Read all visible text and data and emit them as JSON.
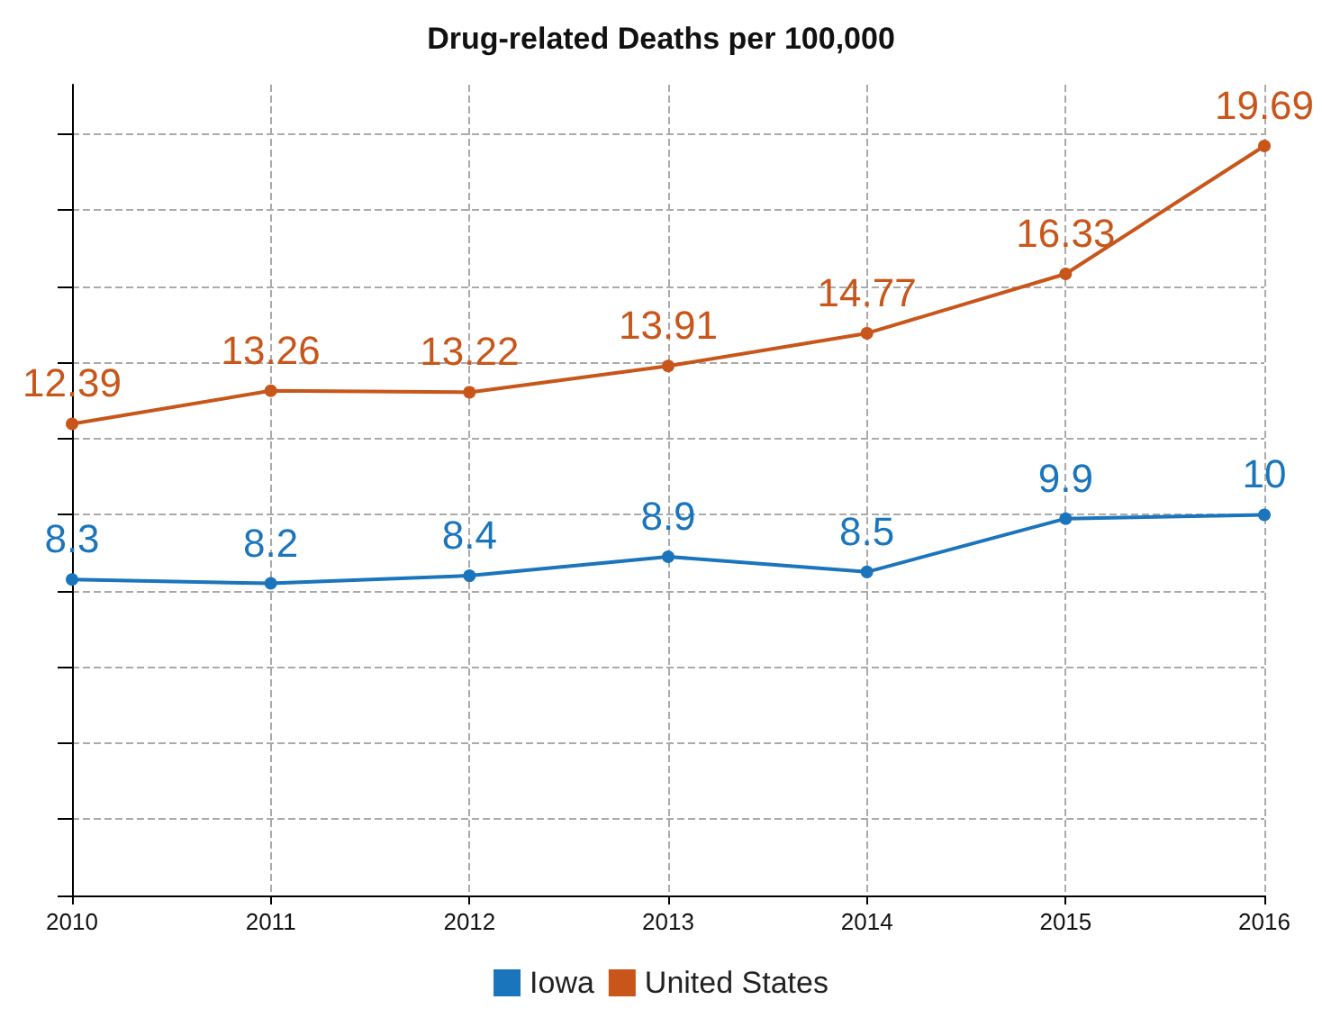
{
  "chart_data": {
    "type": "line",
    "title": "Drug-related Deaths per 100,000",
    "categories": [
      "2010",
      "2011",
      "2012",
      "2013",
      "2014",
      "2015",
      "2016"
    ],
    "series": [
      {
        "name": "Iowa",
        "color": "#1a75bc",
        "values": [
          8.3,
          8.2,
          8.4,
          8.9,
          8.5,
          9.9,
          10
        ]
      },
      {
        "name": "United States",
        "color": "#c8561a",
        "values": [
          12.39,
          13.26,
          13.22,
          13.91,
          14.77,
          16.33,
          19.69
        ]
      }
    ],
    "ylim": [
      0,
      21.3
    ],
    "yticks": [
      {
        "value": 0,
        "label": null
      },
      {
        "value": 2,
        "label": null
      },
      {
        "value": 4,
        "label": null
      },
      {
        "value": 6,
        "label": null
      },
      {
        "value": 8,
        "label": null
      },
      {
        "value": 10,
        "label": null
      },
      {
        "value": 12,
        "label": null
      },
      {
        "value": 14,
        "label": null
      },
      {
        "value": 16,
        "label": null
      },
      {
        "value": 18,
        "label": null
      },
      {
        "value": 20,
        "label": null
      }
    ],
    "tick_labels": "x",
    "grid": true,
    "legend": "bottom",
    "marker": "circle",
    "line_style": "solid",
    "data_labels": true
  }
}
